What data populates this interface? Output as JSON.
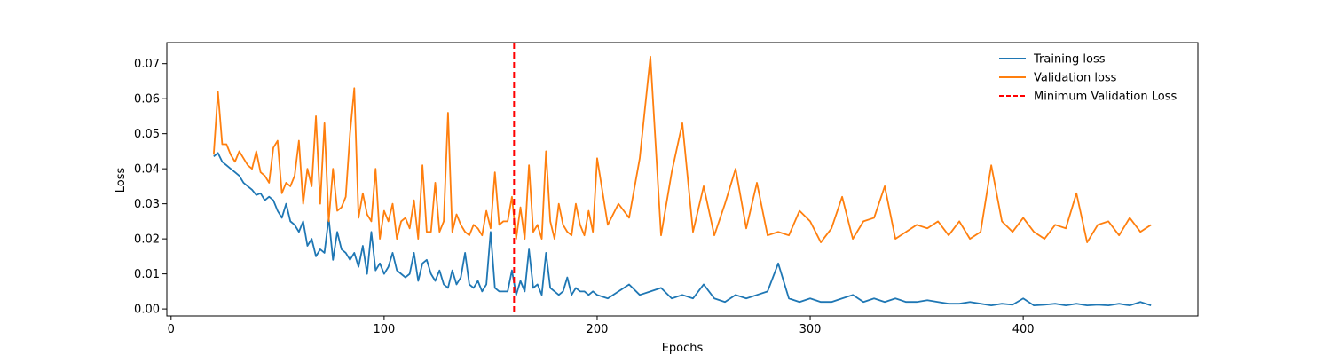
{
  "chart_data": {
    "type": "line",
    "title": "",
    "xlabel": "Epochs",
    "ylabel": "Loss",
    "xlim": [
      -2,
      482
    ],
    "ylim": [
      -0.002,
      0.076
    ],
    "grid": false,
    "legend_position": "top-right",
    "x_ticks": [
      0,
      100,
      200,
      300,
      400
    ],
    "y_ticks": [
      0.0,
      0.01,
      0.02,
      0.03,
      0.04,
      0.05,
      0.06,
      0.07
    ],
    "x_tick_labels": [
      "0",
      "100",
      "200",
      "300",
      "400"
    ],
    "y_tick_labels": [
      "0.00",
      "0.01",
      "0.02",
      "0.03",
      "0.04",
      "0.05",
      "0.06",
      "0.07"
    ],
    "series": [
      {
        "name": "Training loss",
        "color": "#1f77b4",
        "style": "solid",
        "x": [
          20,
          22,
          24,
          26,
          28,
          30,
          32,
          34,
          36,
          38,
          40,
          42,
          44,
          46,
          48,
          50,
          52,
          54,
          56,
          58,
          60,
          62,
          64,
          66,
          68,
          70,
          72,
          74,
          76,
          78,
          80,
          82,
          84,
          86,
          88,
          90,
          92,
          94,
          96,
          98,
          100,
          102,
          104,
          106,
          108,
          110,
          112,
          114,
          116,
          118,
          120,
          122,
          124,
          126,
          128,
          130,
          132,
          134,
          136,
          138,
          140,
          142,
          144,
          146,
          148,
          150,
          152,
          154,
          156,
          158,
          160,
          162,
          164,
          166,
          168,
          170,
          172,
          174,
          176,
          178,
          180,
          182,
          184,
          186,
          188,
          190,
          192,
          194,
          196,
          198,
          200,
          205,
          210,
          215,
          220,
          225,
          230,
          235,
          240,
          245,
          250,
          255,
          260,
          265,
          270,
          275,
          280,
          285,
          290,
          295,
          300,
          305,
          310,
          315,
          320,
          325,
          330,
          335,
          340,
          345,
          350,
          355,
          360,
          365,
          370,
          375,
          380,
          385,
          390,
          395,
          400,
          405,
          410,
          415,
          420,
          425,
          430,
          435,
          440,
          445,
          450,
          455,
          460
        ],
        "values": [
          0.0435,
          0.0445,
          0.042,
          0.041,
          0.04,
          0.039,
          0.038,
          0.036,
          0.035,
          0.034,
          0.0325,
          0.033,
          0.031,
          0.032,
          0.031,
          0.028,
          0.026,
          0.03,
          0.025,
          0.024,
          0.022,
          0.025,
          0.018,
          0.02,
          0.015,
          0.017,
          0.016,
          0.026,
          0.014,
          0.022,
          0.017,
          0.016,
          0.014,
          0.016,
          0.012,
          0.018,
          0.01,
          0.022,
          0.011,
          0.013,
          0.01,
          0.012,
          0.016,
          0.011,
          0.01,
          0.009,
          0.01,
          0.016,
          0.008,
          0.013,
          0.014,
          0.01,
          0.008,
          0.011,
          0.007,
          0.006,
          0.011,
          0.007,
          0.009,
          0.016,
          0.007,
          0.006,
          0.008,
          0.005,
          0.007,
          0.022,
          0.006,
          0.005,
          0.005,
          0.005,
          0.011,
          0.004,
          0.008,
          0.005,
          0.017,
          0.006,
          0.007,
          0.004,
          0.016,
          0.006,
          0.005,
          0.004,
          0.005,
          0.009,
          0.004,
          0.006,
          0.005,
          0.005,
          0.004,
          0.005,
          0.004,
          0.003,
          0.005,
          0.007,
          0.004,
          0.005,
          0.006,
          0.003,
          0.004,
          0.003,
          0.007,
          0.003,
          0.002,
          0.004,
          0.003,
          0.004,
          0.005,
          0.013,
          0.003,
          0.002,
          0.003,
          0.002,
          0.002,
          0.003,
          0.004,
          0.002,
          0.003,
          0.002,
          0.003,
          0.002,
          0.002,
          0.0025,
          0.002,
          0.0015,
          0.0015,
          0.002,
          0.0015,
          0.001,
          0.0015,
          0.0012,
          0.003,
          0.001,
          0.0012,
          0.0015,
          0.001,
          0.0015,
          0.001,
          0.0012,
          0.001,
          0.0015,
          0.001,
          0.002,
          0.001
        ]
      },
      {
        "name": "Validation loss",
        "color": "#ff7f0e",
        "style": "solid",
        "x": [
          20,
          22,
          24,
          26,
          28,
          30,
          32,
          34,
          36,
          38,
          40,
          42,
          44,
          46,
          48,
          50,
          52,
          54,
          56,
          58,
          60,
          62,
          64,
          66,
          68,
          70,
          72,
          74,
          76,
          78,
          80,
          82,
          84,
          86,
          88,
          90,
          92,
          94,
          96,
          98,
          100,
          102,
          104,
          106,
          108,
          110,
          112,
          114,
          116,
          118,
          120,
          122,
          124,
          126,
          128,
          130,
          132,
          134,
          136,
          138,
          140,
          142,
          144,
          146,
          148,
          150,
          152,
          154,
          156,
          158,
          160,
          162,
          164,
          166,
          168,
          170,
          172,
          174,
          176,
          178,
          180,
          182,
          184,
          186,
          188,
          190,
          192,
          194,
          196,
          198,
          200,
          205,
          210,
          215,
          220,
          225,
          230,
          235,
          240,
          245,
          250,
          255,
          260,
          265,
          270,
          275,
          280,
          285,
          290,
          295,
          300,
          305,
          310,
          315,
          320,
          325,
          330,
          335,
          340,
          345,
          350,
          355,
          360,
          365,
          370,
          375,
          380,
          385,
          390,
          395,
          400,
          405,
          410,
          415,
          420,
          425,
          430,
          435,
          440,
          445,
          450,
          455,
          460
        ],
        "values": [
          0.044,
          0.062,
          0.047,
          0.047,
          0.044,
          0.042,
          0.045,
          0.043,
          0.041,
          0.04,
          0.045,
          0.039,
          0.038,
          0.036,
          0.046,
          0.048,
          0.033,
          0.036,
          0.035,
          0.038,
          0.048,
          0.03,
          0.04,
          0.035,
          0.055,
          0.03,
          0.053,
          0.025,
          0.04,
          0.028,
          0.029,
          0.032,
          0.05,
          0.063,
          0.026,
          0.033,
          0.027,
          0.025,
          0.04,
          0.02,
          0.028,
          0.025,
          0.03,
          0.02,
          0.025,
          0.026,
          0.023,
          0.031,
          0.02,
          0.041,
          0.022,
          0.022,
          0.036,
          0.022,
          0.025,
          0.056,
          0.022,
          0.027,
          0.024,
          0.022,
          0.021,
          0.024,
          0.023,
          0.021,
          0.028,
          0.023,
          0.039,
          0.024,
          0.025,
          0.025,
          0.032,
          0.02,
          0.029,
          0.02,
          0.041,
          0.022,
          0.024,
          0.02,
          0.045,
          0.025,
          0.02,
          0.03,
          0.024,
          0.022,
          0.021,
          0.03,
          0.024,
          0.021,
          0.028,
          0.022,
          0.043,
          0.024,
          0.03,
          0.026,
          0.043,
          0.072,
          0.021,
          0.039,
          0.053,
          0.022,
          0.035,
          0.021,
          0.03,
          0.04,
          0.023,
          0.036,
          0.021,
          0.022,
          0.021,
          0.028,
          0.025,
          0.019,
          0.023,
          0.032,
          0.02,
          0.025,
          0.026,
          0.035,
          0.02,
          0.022,
          0.024,
          0.023,
          0.025,
          0.021,
          0.025,
          0.02,
          0.022,
          0.041,
          0.025,
          0.022,
          0.026,
          0.022,
          0.02,
          0.024,
          0.023,
          0.033,
          0.019,
          0.024,
          0.025,
          0.021,
          0.026,
          0.022,
          0.024
        ]
      }
    ],
    "reference_lines": [
      {
        "name": "Minimum Validation Loss",
        "orientation": "vertical",
        "x": 161,
        "color": "#ff0000",
        "style": "dashed"
      }
    ]
  }
}
